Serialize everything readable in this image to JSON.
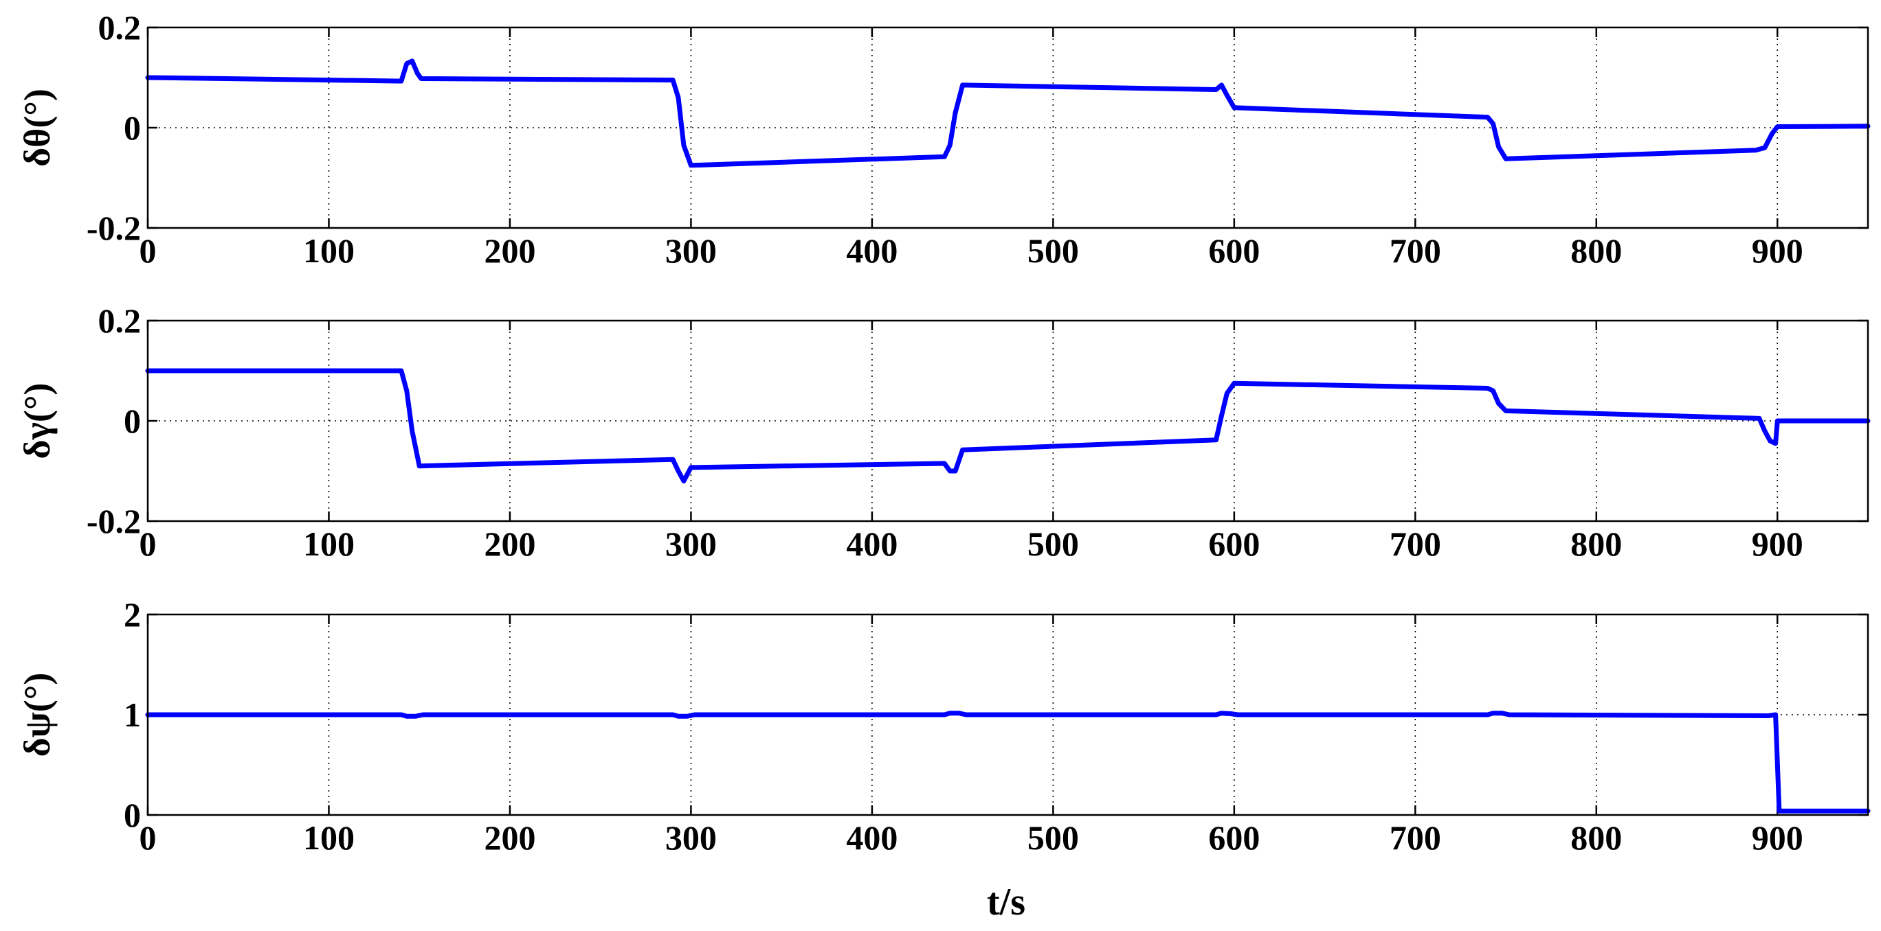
{
  "colors": {
    "series": "#0000ff",
    "axes": "#000000",
    "background": "#ffffff"
  },
  "chart_data": [
    {
      "type": "line",
      "ylabel": "δθ(°)",
      "xlabel": "",
      "xlim": [
        0,
        950
      ],
      "ylim": [
        -0.2,
        0.2
      ],
      "xticks": [
        0,
        100,
        200,
        300,
        400,
        500,
        600,
        700,
        800,
        900
      ],
      "yticks": [
        -0.2,
        0,
        0.2
      ],
      "ytick_labels": [
        "-0.2",
        "0",
        "0.2"
      ],
      "grid": true,
      "series": [
        {
          "x": [
            0,
            140,
            143,
            146,
            149,
            151,
            290,
            293,
            296,
            300,
            440,
            443,
            446,
            450,
            590,
            593,
            596,
            600,
            740,
            743,
            746,
            750,
            888,
            893,
            897,
            900,
            950
          ],
          "y": [
            0.1,
            0.093,
            0.128,
            0.133,
            0.108,
            0.098,
            0.095,
            0.06,
            -0.035,
            -0.075,
            -0.058,
            -0.035,
            0.03,
            0.085,
            0.076,
            0.085,
            0.065,
            0.04,
            0.021,
            0.008,
            -0.038,
            -0.062,
            -0.045,
            -0.04,
            -0.012,
            0.002,
            0.003
          ]
        }
      ]
    },
    {
      "type": "line",
      "ylabel": "δγ(°)",
      "xlabel": "",
      "xlim": [
        0,
        950
      ],
      "ylim": [
        -0.2,
        0.2
      ],
      "xticks": [
        0,
        100,
        200,
        300,
        400,
        500,
        600,
        700,
        800,
        900
      ],
      "yticks": [
        -0.2,
        0,
        0.2
      ],
      "ytick_labels": [
        "-0.2",
        "0",
        "0.2"
      ],
      "grid": true,
      "series": [
        {
          "x": [
            0,
            140,
            143,
            146,
            150,
            290,
            293,
            296,
            300,
            440,
            443,
            446,
            450,
            590,
            593,
            596,
            600,
            740,
            743,
            746,
            750,
            890,
            893,
            896,
            899,
            900,
            950
          ],
          "y": [
            0.1,
            0.1,
            0.06,
            -0.02,
            -0.09,
            -0.077,
            -0.1,
            -0.12,
            -0.093,
            -0.085,
            -0.1,
            -0.1,
            -0.058,
            -0.038,
            0.01,
            0.055,
            0.075,
            0.065,
            0.06,
            0.035,
            0.02,
            0.005,
            -0.02,
            -0.04,
            -0.045,
            0.0,
            0.0
          ]
        }
      ]
    },
    {
      "type": "line",
      "ylabel": "δψ(°)",
      "xlabel": "t/s",
      "xlim": [
        0,
        950
      ],
      "ylim": [
        0,
        2
      ],
      "xticks": [
        0,
        100,
        200,
        300,
        400,
        500,
        600,
        700,
        800,
        900
      ],
      "yticks": [
        0,
        1,
        2
      ],
      "ytick_labels": [
        "0",
        "1",
        "2"
      ],
      "grid": true,
      "series": [
        {
          "x": [
            0,
            140,
            143,
            148,
            152,
            290,
            293,
            298,
            302,
            440,
            443,
            448,
            452,
            590,
            593,
            598,
            602,
            740,
            743,
            748,
            752,
            895,
            899,
            901,
            950
          ],
          "y": [
            1.0,
            1.0,
            0.985,
            0.985,
            1.0,
            1.0,
            0.985,
            0.985,
            1.0,
            1.0,
            1.015,
            1.015,
            1.0,
            1.0,
            1.015,
            1.01,
            1.0,
            1.0,
            1.015,
            1.015,
            1.0,
            0.99,
            1.0,
            0.04,
            0.04
          ]
        }
      ]
    }
  ]
}
